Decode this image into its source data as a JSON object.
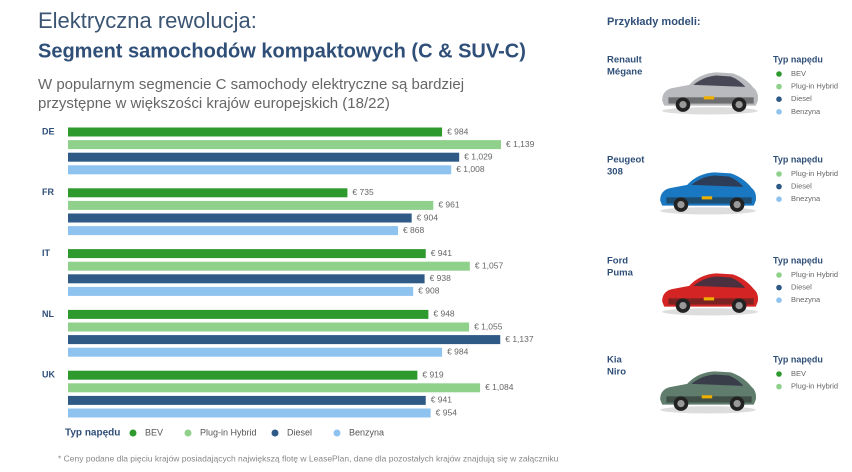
{
  "chart_data": {
    "type": "hbar",
    "title": "Elektryczna rewolucja:",
    "subtitle": "Segment samochodów kompaktowych (C & SUV-C)",
    "description_lines": [
      "W popularnym segmencie C samochody elektryczne są bardziej",
      "przystępne w większości krajów europejskich (18/22)"
    ],
    "categories": [
      "DE",
      "FR",
      "IT",
      "NL",
      "UK"
    ],
    "series": [
      {
        "name": "BEV",
        "color": "#2e9a2e",
        "values": [
          984,
          735,
          941,
          948,
          919
        ],
        "value_labels": [
          "€ 984",
          "€ 735",
          "€ 941",
          "€ 948",
          "€ 919"
        ]
      },
      {
        "name": "Plug-in Hybrid",
        "color": "#8fd18a",
        "values": [
          1139,
          961,
          1057,
          1055,
          1084
        ],
        "value_labels": [
          "€ 1,139",
          "€ 961",
          "€ 1,057",
          "€ 1,055",
          "€ 1,084"
        ]
      },
      {
        "name": "Diesel",
        "color": "#2e5a85",
        "values": [
          1029,
          904,
          938,
          1137,
          941
        ],
        "value_labels": [
          "€ 1,029",
          "€ 904",
          "€ 938",
          "€ 1,137",
          "€ 941"
        ]
      },
      {
        "name": "Benzyna",
        "color": "#8fc3ef",
        "values": [
          1008,
          868,
          908,
          984,
          954
        ],
        "value_labels": [
          "€ 1,008",
          "€ 868",
          "€ 908",
          "€ 984",
          "€ 954"
        ]
      }
    ],
    "legend_title": "Typ napędu",
    "footnote": "* Ceny podane dla pięciu krajów posiadających największą flotę w LeasePlan, dane dla pozostałych krajów znajdują się w załączniku"
  },
  "models_heading": "Przykłady modeli:",
  "models": [
    {
      "name_lines": [
        "Renault",
        "Mégane"
      ],
      "legend_title": "Typ napędu",
      "items": [
        {
          "label": "BEV",
          "color": "#2e9a2e"
        },
        {
          "label": "Plug-in Hybrid",
          "color": "#8fd18a"
        },
        {
          "label": "Diesel",
          "color": "#2e5a85"
        },
        {
          "label": "Benzyna",
          "color": "#8fc3ef"
        }
      ]
    },
    {
      "name_lines": [
        "Peugeot",
        "308"
      ],
      "legend_title": "Typ napędu",
      "items": [
        {
          "label": "Plug-in Hybrid",
          "color": "#8fd18a"
        },
        {
          "label": "Diesel",
          "color": "#2e5a85"
        },
        {
          "label": "Bnezyna",
          "color": "#8fc3ef"
        }
      ]
    },
    {
      "name_lines": [
        "Ford",
        "Puma"
      ],
      "legend_title": "Typ napędu",
      "items": [
        {
          "label": "Plug-in Hybrid",
          "color": "#8fd18a"
        },
        {
          "label": "Diesel",
          "color": "#2e5a85"
        },
        {
          "label": "Bnezyna",
          "color": "#8fc3ef"
        }
      ]
    },
    {
      "name_lines": [
        "Kia",
        "Niro"
      ],
      "legend_title": "Typ napędu",
      "items": [
        {
          "label": "BEV",
          "color": "#2e9a2e"
        },
        {
          "label": "Plug-in Hybrid",
          "color": "#8fd18a"
        }
      ]
    }
  ]
}
